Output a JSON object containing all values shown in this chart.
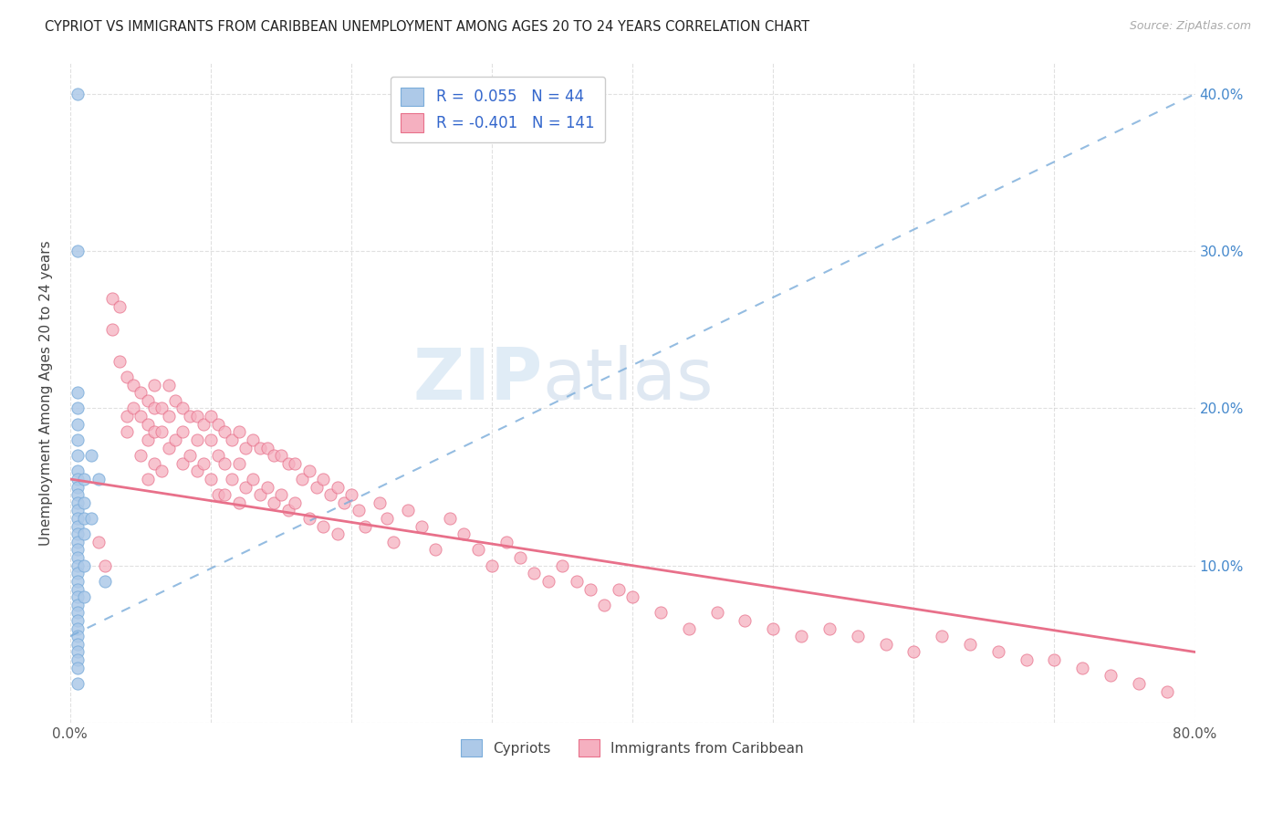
{
  "title": "CYPRIOT VS IMMIGRANTS FROM CARIBBEAN UNEMPLOYMENT AMONG AGES 20 TO 24 YEARS CORRELATION CHART",
  "source": "Source: ZipAtlas.com",
  "ylabel": "Unemployment Among Ages 20 to 24 years",
  "xlim": [
    0.0,
    0.8
  ],
  "ylim": [
    0.0,
    0.42
  ],
  "xticks": [
    0.0,
    0.1,
    0.2,
    0.3,
    0.4,
    0.5,
    0.6,
    0.7,
    0.8
  ],
  "yticks": [
    0.0,
    0.1,
    0.2,
    0.3,
    0.4
  ],
  "blue_color": "#adc9e8",
  "pink_color": "#f5b0c0",
  "trend_blue_color": "#7aacda",
  "trend_pink_color": "#e8708a",
  "background_color": "#ffffff",
  "grid_color": "#cccccc",
  "blue_scatter_x": [
    0.005,
    0.005,
    0.005,
    0.005,
    0.005,
    0.005,
    0.005,
    0.005,
    0.005,
    0.005,
    0.005,
    0.005,
    0.005,
    0.005,
    0.005,
    0.005,
    0.005,
    0.005,
    0.005,
    0.005,
    0.005,
    0.005,
    0.005,
    0.005,
    0.005,
    0.005,
    0.005,
    0.005,
    0.005,
    0.005,
    0.005,
    0.005,
    0.005,
    0.005,
    0.01,
    0.01,
    0.01,
    0.01,
    0.01,
    0.01,
    0.015,
    0.015,
    0.02,
    0.025
  ],
  "blue_scatter_y": [
    0.4,
    0.3,
    0.21,
    0.2,
    0.19,
    0.18,
    0.17,
    0.16,
    0.155,
    0.15,
    0.145,
    0.14,
    0.135,
    0.13,
    0.125,
    0.12,
    0.115,
    0.11,
    0.105,
    0.1,
    0.095,
    0.09,
    0.085,
    0.08,
    0.075,
    0.07,
    0.065,
    0.06,
    0.055,
    0.05,
    0.045,
    0.04,
    0.035,
    0.025,
    0.155,
    0.14,
    0.13,
    0.12,
    0.1,
    0.08,
    0.17,
    0.13,
    0.155,
    0.09
  ],
  "pink_scatter_x": [
    0.02,
    0.025,
    0.03,
    0.03,
    0.035,
    0.035,
    0.04,
    0.04,
    0.04,
    0.045,
    0.045,
    0.05,
    0.05,
    0.05,
    0.055,
    0.055,
    0.055,
    0.055,
    0.06,
    0.06,
    0.06,
    0.06,
    0.065,
    0.065,
    0.065,
    0.07,
    0.07,
    0.07,
    0.075,
    0.075,
    0.08,
    0.08,
    0.08,
    0.085,
    0.085,
    0.09,
    0.09,
    0.09,
    0.095,
    0.095,
    0.1,
    0.1,
    0.1,
    0.105,
    0.105,
    0.105,
    0.11,
    0.11,
    0.11,
    0.115,
    0.115,
    0.12,
    0.12,
    0.12,
    0.125,
    0.125,
    0.13,
    0.13,
    0.135,
    0.135,
    0.14,
    0.14,
    0.145,
    0.145,
    0.15,
    0.15,
    0.155,
    0.155,
    0.16,
    0.16,
    0.165,
    0.17,
    0.17,
    0.175,
    0.18,
    0.18,
    0.185,
    0.19,
    0.19,
    0.195,
    0.2,
    0.205,
    0.21,
    0.22,
    0.225,
    0.23,
    0.24,
    0.25,
    0.26,
    0.27,
    0.28,
    0.29,
    0.3,
    0.31,
    0.32,
    0.33,
    0.34,
    0.35,
    0.36,
    0.37,
    0.38,
    0.39,
    0.4,
    0.42,
    0.44,
    0.46,
    0.48,
    0.5,
    0.52,
    0.54,
    0.56,
    0.58,
    0.6,
    0.62,
    0.64,
    0.66,
    0.68,
    0.7,
    0.72,
    0.74,
    0.76,
    0.78
  ],
  "pink_scatter_y": [
    0.115,
    0.1,
    0.27,
    0.25,
    0.265,
    0.23,
    0.22,
    0.195,
    0.185,
    0.215,
    0.2,
    0.21,
    0.195,
    0.17,
    0.205,
    0.19,
    0.18,
    0.155,
    0.215,
    0.2,
    0.185,
    0.165,
    0.2,
    0.185,
    0.16,
    0.215,
    0.195,
    0.175,
    0.205,
    0.18,
    0.2,
    0.185,
    0.165,
    0.195,
    0.17,
    0.195,
    0.18,
    0.16,
    0.19,
    0.165,
    0.195,
    0.18,
    0.155,
    0.19,
    0.17,
    0.145,
    0.185,
    0.165,
    0.145,
    0.18,
    0.155,
    0.185,
    0.165,
    0.14,
    0.175,
    0.15,
    0.18,
    0.155,
    0.175,
    0.145,
    0.175,
    0.15,
    0.17,
    0.14,
    0.17,
    0.145,
    0.165,
    0.135,
    0.165,
    0.14,
    0.155,
    0.16,
    0.13,
    0.15,
    0.155,
    0.125,
    0.145,
    0.15,
    0.12,
    0.14,
    0.145,
    0.135,
    0.125,
    0.14,
    0.13,
    0.115,
    0.135,
    0.125,
    0.11,
    0.13,
    0.12,
    0.11,
    0.1,
    0.115,
    0.105,
    0.095,
    0.09,
    0.1,
    0.09,
    0.085,
    0.075,
    0.085,
    0.08,
    0.07,
    0.06,
    0.07,
    0.065,
    0.06,
    0.055,
    0.06,
    0.055,
    0.05,
    0.045,
    0.055,
    0.05,
    0.045,
    0.04,
    0.04,
    0.035,
    0.03,
    0.025,
    0.02
  ],
  "blue_trend_x0": 0.0,
  "blue_trend_x1": 0.8,
  "blue_trend_y0": 0.055,
  "blue_trend_y1": 0.4,
  "pink_trend_x0": 0.0,
  "pink_trend_x1": 0.8,
  "pink_trend_y0": 0.155,
  "pink_trend_y1": 0.045
}
